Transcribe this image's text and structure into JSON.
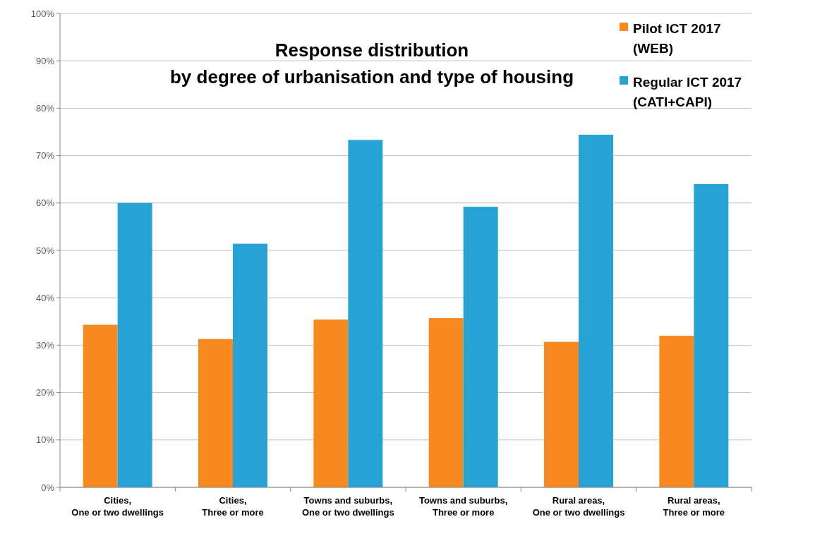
{
  "chart_data": {
    "type": "bar",
    "title": "Response distribution\nby degree of urbanisation and type of housing",
    "categories": [
      "Cities,\nOne or two dwellings",
      "Cities,\nThree or more",
      "Towns and suburbs,\nOne or two dwellings",
      "Towns and suburbs,\nThree or more",
      "Rural areas,\nOne or two dwellings",
      "Rural areas,\nThree or more"
    ],
    "series": [
      {
        "name": "Pilot ICT 2017\n(WEB)",
        "color": "#f8891f",
        "values": [
          34.3,
          31.3,
          35.4,
          35.7,
          30.7,
          32.0
        ]
      },
      {
        "name": "Regular ICT 2017\n(CATI+CAPI)",
        "color": "#27a2d4",
        "values": [
          60.0,
          51.4,
          73.3,
          59.2,
          74.4,
          64.0
        ]
      }
    ],
    "ylim": [
      0,
      100
    ],
    "yticks": [
      {
        "value": 0,
        "label": "0%"
      },
      {
        "value": 10,
        "label": "10%"
      },
      {
        "value": 20,
        "label": "20%"
      },
      {
        "value": 30,
        "label": "30%"
      },
      {
        "value": 40,
        "label": "40%"
      },
      {
        "value": 50,
        "label": "50%"
      },
      {
        "value": 60,
        "label": "60%"
      },
      {
        "value": 70,
        "label": "70%"
      },
      {
        "value": 80,
        "label": "80%"
      },
      {
        "value": 90,
        "label": "90%"
      },
      {
        "value": 100,
        "label": "100%"
      }
    ],
    "grid": "y",
    "legend": "top right"
  }
}
